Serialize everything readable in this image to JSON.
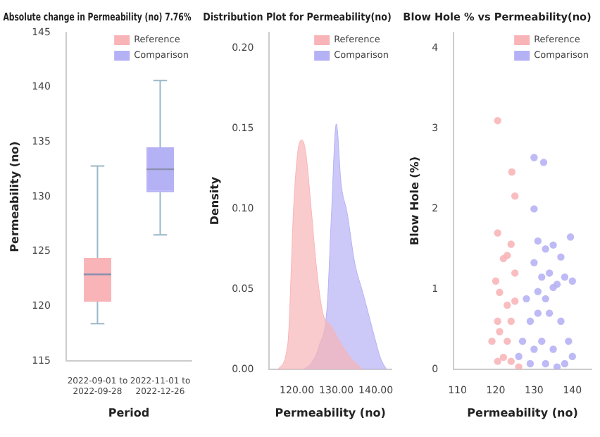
{
  "chart_data": [
    {
      "type": "box",
      "title": "Absolute change in Permeability (no) 7.76%",
      "xlabel": "Period",
      "ylabel": "Permeability (no)",
      "categories": [
        "2022-09-01 to 2022-09-28",
        "2022-11-01 to 2022-12-26"
      ],
      "ylim": [
        115,
        145
      ],
      "yticks": [
        115,
        120,
        125,
        130,
        135,
        140,
        145
      ],
      "legend": "top right",
      "series": [
        {
          "name": "Reference",
          "color": "#f8b4b7",
          "boxes": [
            {
              "low": 118.4,
              "q1": 120.4,
              "median": 122.9,
              "q3": 124.4,
              "high": 132.8
            },
            null
          ]
        },
        {
          "name": "Comparison",
          "color": "#b5b1f5",
          "boxes": [
            null,
            {
              "low": 126.5,
              "q1": 130.4,
              "median": 132.5,
              "q3": 134.5,
              "high": 140.6
            }
          ]
        }
      ]
    },
    {
      "type": "area",
      "title": "Distribution Plot for Permeability(no)",
      "xlabel": "Permeability (no)",
      "ylabel": "Density",
      "xlim": [
        113,
        144
      ],
      "xticks": [
        {
          "value": 120,
          "label": "120.00"
        },
        {
          "value": 130,
          "label": "130.00"
        },
        {
          "value": 140,
          "label": "140.00"
        }
      ],
      "ylim": [
        0,
        0.21
      ],
      "yticks": [
        {
          "value": 0,
          "label": "0.00"
        },
        {
          "value": 0.05,
          "label": "0.05"
        },
        {
          "value": 0.1,
          "label": "0.10"
        },
        {
          "value": 0.15,
          "label": "0.15"
        },
        {
          "value": 0.2,
          "label": "0.20"
        }
      ],
      "legend": "top right",
      "series": [
        {
          "name": "Reference",
          "color": "#f8b4b7",
          "x": [
            115.2,
            117.7,
            119.2,
            120.2,
            121.2,
            122.2,
            123.7,
            124.7,
            125.7,
            126.7,
            128.7,
            130.7,
            133.7,
            136.7
          ],
          "values": [
            0,
            0.016,
            0.102,
            0.135,
            0.143,
            0.136,
            0.098,
            0.07,
            0.048,
            0.034,
            0.027,
            0.018,
            0.007,
            0
          ]
        },
        {
          "name": "Comparison",
          "color": "#b5b1f5",
          "x": [
            121.7,
            123.7,
            125.7,
            127.7,
            128.7,
            130,
            131.2,
            132.7,
            134.7,
            136.7,
            138.2,
            139.7,
            141.2,
            142.7
          ],
          "values": [
            0,
            0.004,
            0.015,
            0.04,
            0.093,
            0.153,
            0.116,
            0.098,
            0.066,
            0.048,
            0.034,
            0.02,
            0.007,
            0
          ]
        }
      ]
    },
    {
      "type": "scatter",
      "title": "Blow Hole % vs Permeability(no)",
      "xlabel": "Permeability (no)",
      "ylabel": "Blow Hole (%)",
      "xlim": [
        109,
        145
      ],
      "xticks": [
        110,
        120,
        130,
        140
      ],
      "ylim": [
        0,
        4.2
      ],
      "yticks": [
        0,
        1,
        2,
        3,
        4
      ],
      "legend": "top right",
      "marker": "circle",
      "series": [
        {
          "name": "Reference",
          "color": "#f8b4b7",
          "x": [
            120.5,
            124.2,
            125,
            120.5,
            122,
            124,
            123,
            125,
            121,
            123,
            124,
            120.5,
            119,
            122,
            120.5,
            124,
            126,
            121,
            123,
            125,
            120
          ],
          "values": [
            3.1,
            2.46,
            2.16,
            1.7,
            1.38,
            1.56,
            1.42,
            1.2,
            0.96,
            0.8,
            0.6,
            0.6,
            0.35,
            0.15,
            0.1,
            0.1,
            0.03,
            0.47,
            0.35,
            0.85,
            1.1
          ]
        },
        {
          "name": "Comparison",
          "color": "#b5b1f5",
          "x": [
            130,
            132.5,
            130,
            131,
            133,
            135,
            137,
            139.5,
            130,
            132,
            134,
            136,
            128,
            131,
            133,
            135,
            138,
            140,
            129,
            131,
            134,
            137,
            127,
            130,
            132,
            135,
            139,
            126,
            129,
            133,
            136,
            138,
            140
          ],
          "values": [
            2.64,
            2.58,
            2,
            1.6,
            1.5,
            1.55,
            1.4,
            1.65,
            1.33,
            1.15,
            1.2,
            1.06,
            0.88,
            0.97,
            0.88,
            1.02,
            1.15,
            1.1,
            0.6,
            0.7,
            0.7,
            0.6,
            0.35,
            0.25,
            0.35,
            0.25,
            0.35,
            0.16,
            0.07,
            0.07,
            0.03,
            0.07,
            0.16
          ]
        }
      ]
    }
  ]
}
